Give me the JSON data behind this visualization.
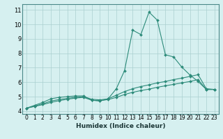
{
  "x": [
    0,
    1,
    2,
    3,
    4,
    5,
    6,
    7,
    8,
    9,
    10,
    11,
    12,
    13,
    14,
    15,
    16,
    17,
    18,
    19,
    20,
    21,
    22,
    23
  ],
  "line1": [
    4.2,
    4.4,
    4.6,
    4.85,
    4.95,
    5.0,
    5.05,
    5.05,
    4.75,
    4.7,
    4.85,
    5.55,
    6.8,
    9.6,
    9.3,
    10.85,
    10.3,
    7.9,
    7.75,
    7.05,
    6.5,
    6.05,
    5.5,
    5.5
  ],
  "line2": [
    4.2,
    4.35,
    4.5,
    4.7,
    4.8,
    4.88,
    4.96,
    5.0,
    4.82,
    4.78,
    4.85,
    5.1,
    5.35,
    5.55,
    5.7,
    5.82,
    5.95,
    6.05,
    6.18,
    6.28,
    6.4,
    6.52,
    5.55,
    5.5
  ],
  "line3": [
    4.2,
    4.32,
    4.45,
    4.6,
    4.72,
    4.82,
    4.9,
    4.95,
    4.75,
    4.72,
    4.8,
    4.95,
    5.15,
    5.3,
    5.42,
    5.52,
    5.65,
    5.75,
    5.85,
    5.95,
    6.05,
    6.18,
    5.5,
    5.5
  ],
  "color": "#2d8b7a",
  "bg_color": "#d6f0f0",
  "grid_color": "#aacfcf",
  "xlabel": "Humidex (Indice chaleur)",
  "ylim": [
    3.8,
    11.4
  ],
  "xlim": [
    -0.5,
    23.5
  ],
  "yticks": [
    4,
    5,
    6,
    7,
    8,
    9,
    10,
    11
  ],
  "xticks": [
    0,
    1,
    2,
    3,
    4,
    5,
    6,
    7,
    8,
    9,
    10,
    11,
    12,
    13,
    14,
    15,
    16,
    17,
    18,
    19,
    20,
    21,
    22,
    23
  ],
  "xlabel_fontsize": 6.5,
  "tick_fontsize": 5.5
}
